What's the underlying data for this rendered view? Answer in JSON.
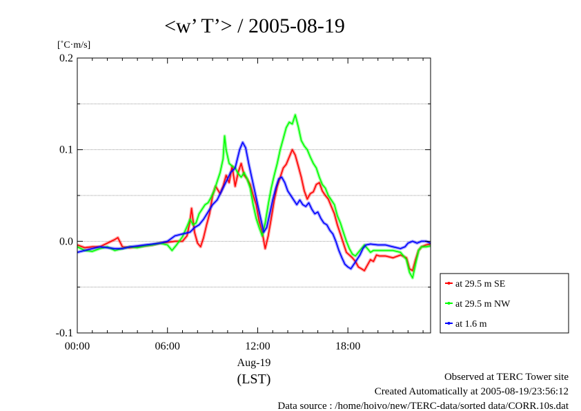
{
  "chart_data": {
    "type": "line",
    "title": "<w’ T’> / 2005-08-19",
    "ylabel": "[˚C·m/s]",
    "xlabel": "(LST)",
    "date_label": "Aug-19",
    "x_unit": "hour",
    "xlim": [
      0,
      23.5
    ],
    "ylim": [
      -0.1,
      0.2
    ],
    "x_ticks": [
      {
        "value": 0,
        "label": "00:00"
      },
      {
        "value": 6,
        "label": "06:00"
      },
      {
        "value": 12,
        "label": "12:00"
      },
      {
        "value": 18,
        "label": "18:00"
      }
    ],
    "y_ticks": [
      {
        "value": -0.1,
        "label": "-0.1"
      },
      {
        "value": 0.0,
        "label": "0.0"
      },
      {
        "value": 0.1,
        "label": "0.1"
      },
      {
        "value": 0.2,
        "label": "0.2"
      }
    ],
    "grid": "horizontal dashed",
    "legend_position": "right-bottom outside",
    "series": [
      {
        "name": "at 29.5 m SE",
        "color": "#ff0000",
        "points": [
          [
            0,
            -0.004
          ],
          [
            0.5,
            -0.007
          ],
          [
            1,
            -0.006
          ],
          [
            1.5,
            -0.006
          ],
          [
            2,
            -0.002
          ],
          [
            2.5,
            0.002
          ],
          [
            2.7,
            0.004
          ],
          [
            3,
            -0.006
          ],
          [
            3.5,
            -0.007
          ],
          [
            4,
            -0.006
          ],
          [
            4.5,
            -0.005
          ],
          [
            5,
            -0.004
          ],
          [
            5.5,
            -0.002
          ],
          [
            6,
            -0.001
          ],
          [
            6.5,
            0.0
          ],
          [
            7,
            0.0
          ],
          [
            7.3,
            0.006
          ],
          [
            7.5,
            0.022
          ],
          [
            7.6,
            0.036
          ],
          [
            7.8,
            0.01
          ],
          [
            8,
            -0.002
          ],
          [
            8.2,
            -0.006
          ],
          [
            8.4,
            0.004
          ],
          [
            8.6,
            0.018
          ],
          [
            8.8,
            0.03
          ],
          [
            9,
            0.05
          ],
          [
            9.2,
            0.06
          ],
          [
            9.5,
            0.052
          ],
          [
            9.7,
            0.06
          ],
          [
            9.9,
            0.072
          ],
          [
            10.1,
            0.064
          ],
          [
            10.3,
            0.082
          ],
          [
            10.5,
            0.06
          ],
          [
            10.7,
            0.075
          ],
          [
            10.9,
            0.085
          ],
          [
            11.1,
            0.072
          ],
          [
            11.3,
            0.068
          ],
          [
            11.5,
            0.062
          ],
          [
            11.7,
            0.05
          ],
          [
            11.9,
            0.04
          ],
          [
            12.1,
            0.022
          ],
          [
            12.3,
            0.01
          ],
          [
            12.5,
            -0.008
          ],
          [
            12.7,
            0.006
          ],
          [
            12.9,
            0.025
          ],
          [
            13.1,
            0.045
          ],
          [
            13.3,
            0.06
          ],
          [
            13.5,
            0.07
          ],
          [
            13.7,
            0.08
          ],
          [
            13.9,
            0.084
          ],
          [
            14.1,
            0.092
          ],
          [
            14.3,
            0.1
          ],
          [
            14.5,
            0.094
          ],
          [
            14.7,
            0.082
          ],
          [
            14.9,
            0.07
          ],
          [
            15.1,
            0.055
          ],
          [
            15.3,
            0.046
          ],
          [
            15.5,
            0.052
          ],
          [
            15.7,
            0.054
          ],
          [
            15.9,
            0.062
          ],
          [
            16.1,
            0.064
          ],
          [
            16.3,
            0.055
          ],
          [
            16.5,
            0.05
          ],
          [
            16.7,
            0.046
          ],
          [
            16.9,
            0.038
          ],
          [
            17.1,
            0.03
          ],
          [
            17.3,
            0.018
          ],
          [
            17.5,
            0.008
          ],
          [
            17.7,
            -0.002
          ],
          [
            17.9,
            -0.012
          ],
          [
            18.1,
            -0.015
          ],
          [
            18.3,
            -0.018
          ],
          [
            18.5,
            -0.022
          ],
          [
            18.7,
            -0.028
          ],
          [
            18.9,
            -0.03
          ],
          [
            19.1,
            -0.032
          ],
          [
            19.3,
            -0.026
          ],
          [
            19.5,
            -0.02
          ],
          [
            19.7,
            -0.022
          ],
          [
            19.9,
            -0.015
          ],
          [
            20.1,
            -0.016
          ],
          [
            20.5,
            -0.016
          ],
          [
            21,
            -0.018
          ],
          [
            21.5,
            -0.015
          ],
          [
            21.9,
            -0.018
          ],
          [
            22.1,
            -0.03
          ],
          [
            22.3,
            -0.032
          ],
          [
            22.5,
            -0.02
          ],
          [
            22.7,
            -0.01
          ],
          [
            22.9,
            -0.006
          ],
          [
            23.2,
            -0.004
          ],
          [
            23.5,
            -0.003
          ]
        ]
      },
      {
        "name": "at 29.5 m NW",
        "color": "#00ff00",
        "points": [
          [
            0,
            -0.006
          ],
          [
            0.5,
            -0.01
          ],
          [
            1,
            -0.011
          ],
          [
            1.5,
            -0.008
          ],
          [
            2,
            -0.006
          ],
          [
            2.5,
            -0.01
          ],
          [
            3,
            -0.008
          ],
          [
            3.5,
            -0.006
          ],
          [
            4,
            -0.007
          ],
          [
            4.5,
            -0.005
          ],
          [
            5,
            -0.004
          ],
          [
            5.5,
            -0.002
          ],
          [
            6,
            -0.004
          ],
          [
            6.3,
            -0.01
          ],
          [
            6.6,
            -0.004
          ],
          [
            7,
            0.005
          ],
          [
            7.3,
            0.016
          ],
          [
            7.5,
            0.024
          ],
          [
            7.7,
            0.018
          ],
          [
            7.9,
            0.02
          ],
          [
            8.1,
            0.03
          ],
          [
            8.3,
            0.035
          ],
          [
            8.5,
            0.04
          ],
          [
            8.7,
            0.042
          ],
          [
            8.9,
            0.048
          ],
          [
            9.1,
            0.055
          ],
          [
            9.3,
            0.065
          ],
          [
            9.5,
            0.075
          ],
          [
            9.7,
            0.09
          ],
          [
            9.8,
            0.115
          ],
          [
            9.9,
            0.1
          ],
          [
            10.1,
            0.085
          ],
          [
            10.3,
            0.082
          ],
          [
            10.5,
            0.08
          ],
          [
            10.7,
            0.074
          ],
          [
            10.9,
            0.07
          ],
          [
            11.1,
            0.075
          ],
          [
            11.3,
            0.068
          ],
          [
            11.5,
            0.058
          ],
          [
            11.7,
            0.04
          ],
          [
            11.9,
            0.025
          ],
          [
            12.1,
            0.015
          ],
          [
            12.3,
            0.006
          ],
          [
            12.5,
            0.02
          ],
          [
            12.7,
            0.04
          ],
          [
            12.9,
            0.058
          ],
          [
            13.1,
            0.072
          ],
          [
            13.3,
            0.085
          ],
          [
            13.5,
            0.1
          ],
          [
            13.7,
            0.112
          ],
          [
            13.9,
            0.124
          ],
          [
            14.1,
            0.13
          ],
          [
            14.3,
            0.128
          ],
          [
            14.5,
            0.138
          ],
          [
            14.7,
            0.125
          ],
          [
            14.9,
            0.11
          ],
          [
            15.1,
            0.104
          ],
          [
            15.3,
            0.1
          ],
          [
            15.5,
            0.092
          ],
          [
            15.7,
            0.085
          ],
          [
            15.9,
            0.08
          ],
          [
            16.1,
            0.07
          ],
          [
            16.3,
            0.062
          ],
          [
            16.5,
            0.058
          ],
          [
            16.7,
            0.05
          ],
          [
            16.9,
            0.045
          ],
          [
            17.1,
            0.04
          ],
          [
            17.3,
            0.028
          ],
          [
            17.5,
            0.02
          ],
          [
            17.7,
            0.01
          ],
          [
            17.9,
            0.0
          ],
          [
            18.1,
            -0.008
          ],
          [
            18.3,
            -0.014
          ],
          [
            18.5,
            -0.016
          ],
          [
            18.7,
            -0.012
          ],
          [
            18.9,
            -0.008
          ],
          [
            19.1,
            -0.004
          ],
          [
            19.3,
            -0.008
          ],
          [
            19.5,
            -0.012
          ],
          [
            19.7,
            -0.01
          ],
          [
            20,
            -0.01
          ],
          [
            20.5,
            -0.01
          ],
          [
            21,
            -0.01
          ],
          [
            21.5,
            -0.012
          ],
          [
            21.9,
            -0.02
          ],
          [
            22.1,
            -0.034
          ],
          [
            22.3,
            -0.04
          ],
          [
            22.5,
            -0.025
          ],
          [
            22.7,
            -0.01
          ],
          [
            22.9,
            -0.006
          ],
          [
            23.2,
            -0.006
          ],
          [
            23.5,
            -0.005
          ]
        ]
      },
      {
        "name": "at 1.6 m",
        "color": "#0000ff",
        "points": [
          [
            0,
            -0.012
          ],
          [
            0.5,
            -0.01
          ],
          [
            1,
            -0.008
          ],
          [
            1.5,
            -0.006
          ],
          [
            2,
            -0.007
          ],
          [
            2.5,
            -0.008
          ],
          [
            3,
            -0.008
          ],
          [
            3.5,
            -0.006
          ],
          [
            4,
            -0.005
          ],
          [
            4.5,
            -0.004
          ],
          [
            5,
            -0.003
          ],
          [
            5.5,
            -0.002
          ],
          [
            6,
            0.0
          ],
          [
            6.5,
            0.006
          ],
          [
            7,
            0.008
          ],
          [
            7.5,
            0.01
          ],
          [
            7.8,
            0.015
          ],
          [
            8.1,
            0.018
          ],
          [
            8.4,
            0.024
          ],
          [
            8.7,
            0.032
          ],
          [
            9,
            0.04
          ],
          [
            9.3,
            0.045
          ],
          [
            9.6,
            0.055
          ],
          [
            9.9,
            0.065
          ],
          [
            10.2,
            0.075
          ],
          [
            10.5,
            0.08
          ],
          [
            10.8,
            0.1
          ],
          [
            11.0,
            0.108
          ],
          [
            11.2,
            0.102
          ],
          [
            11.4,
            0.085
          ],
          [
            11.6,
            0.07
          ],
          [
            11.8,
            0.055
          ],
          [
            12.0,
            0.04
          ],
          [
            12.2,
            0.025
          ],
          [
            12.4,
            0.01
          ],
          [
            12.6,
            0.015
          ],
          [
            12.8,
            0.03
          ],
          [
            13.0,
            0.045
          ],
          [
            13.2,
            0.058
          ],
          [
            13.4,
            0.068
          ],
          [
            13.6,
            0.07
          ],
          [
            13.8,
            0.064
          ],
          [
            14.0,
            0.055
          ],
          [
            14.2,
            0.05
          ],
          [
            14.4,
            0.045
          ],
          [
            14.6,
            0.04
          ],
          [
            14.8,
            0.045
          ],
          [
            15.0,
            0.04
          ],
          [
            15.2,
            0.038
          ],
          [
            15.4,
            0.042
          ],
          [
            15.6,
            0.035
          ],
          [
            15.8,
            0.03
          ],
          [
            16.0,
            0.032
          ],
          [
            16.2,
            0.025
          ],
          [
            16.4,
            0.02
          ],
          [
            16.6,
            0.018
          ],
          [
            16.8,
            0.012
          ],
          [
            17.0,
            0.008
          ],
          [
            17.2,
            0.0
          ],
          [
            17.4,
            -0.01
          ],
          [
            17.6,
            -0.018
          ],
          [
            17.8,
            -0.025
          ],
          [
            18.0,
            -0.028
          ],
          [
            18.2,
            -0.03
          ],
          [
            18.4,
            -0.025
          ],
          [
            18.6,
            -0.02
          ],
          [
            18.8,
            -0.015
          ],
          [
            19.0,
            -0.008
          ],
          [
            19.2,
            -0.004
          ],
          [
            19.5,
            -0.003
          ],
          [
            20,
            -0.004
          ],
          [
            20.5,
            -0.004
          ],
          [
            21,
            -0.006
          ],
          [
            21.5,
            -0.008
          ],
          [
            21.8,
            -0.006
          ],
          [
            22,
            -0.002
          ],
          [
            22.3,
            0.0
          ],
          [
            22.6,
            -0.002
          ],
          [
            22.9,
            0.0
          ],
          [
            23.2,
            0.0
          ],
          [
            23.5,
            -0.002
          ]
        ]
      }
    ]
  },
  "footer": {
    "line1": "Observed at TERC Tower site",
    "line2": "Created Automatically at 2005-08-19/23:56:12",
    "line3": "Data source : /home/hoivo/new/TERC-data/sorted  data/CORR.10s.dat"
  }
}
